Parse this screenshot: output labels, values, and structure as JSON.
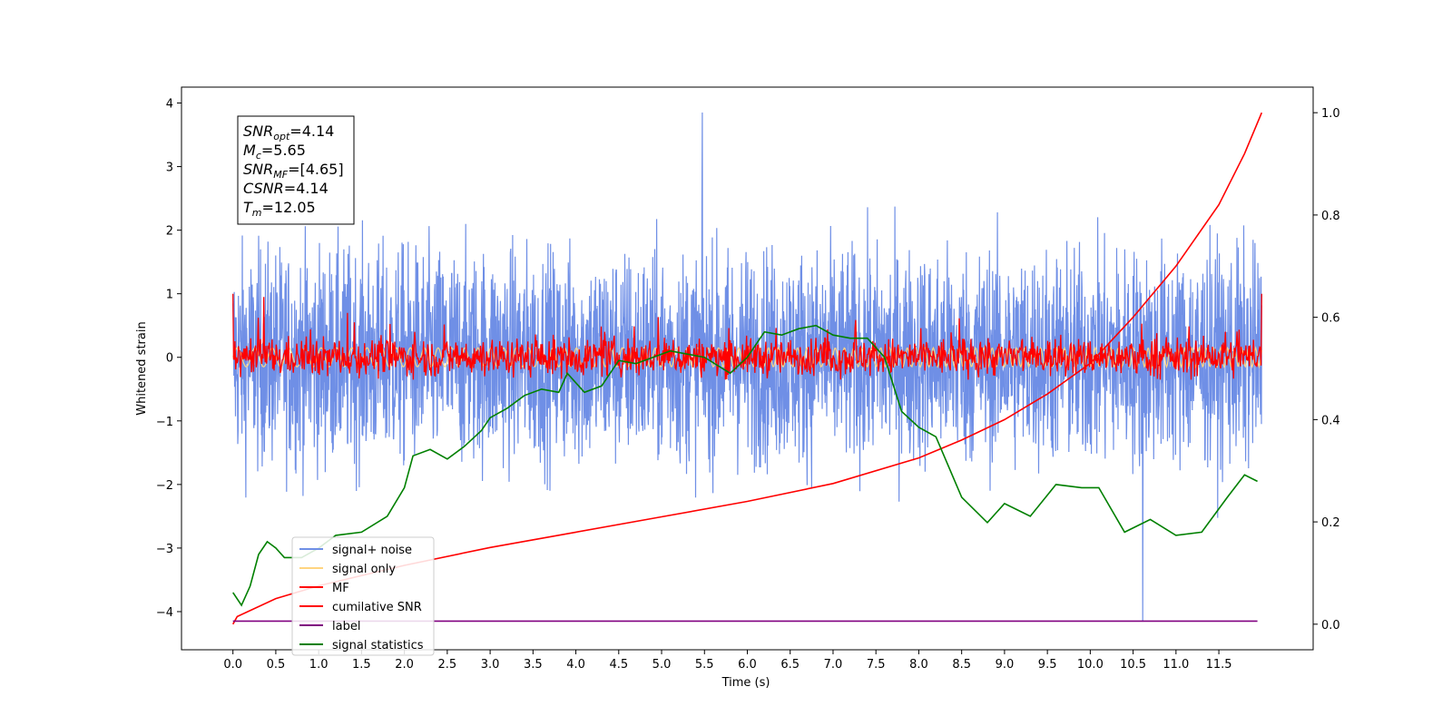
{
  "chart_data": {
    "type": "line",
    "xlabel": "Time (s)",
    "ylabel": "Whitened strain",
    "xlim": [
      -0.6,
      12.6
    ],
    "ylim": [
      -4.6,
      4.25
    ],
    "y2lim": [
      -0.05,
      1.05
    ],
    "x_ticks": [
      "0.0",
      "0.5",
      "1.0",
      "1.5",
      "2.0",
      "2.5",
      "3.0",
      "3.5",
      "4.0",
      "4.5",
      "5.0",
      "5.5",
      "6.0",
      "6.5",
      "7.0",
      "7.5",
      "8.0",
      "8.5",
      "9.0",
      "9.5",
      "10.0",
      "10.5",
      "11.0",
      "11.5"
    ],
    "y_ticks": [
      "4",
      "3",
      "2",
      "1",
      "0",
      "−1",
      "−2",
      "−3",
      "−4"
    ],
    "y2_ticks": [
      "1.0",
      "0.8",
      "0.6",
      "0.4",
      "0.2",
      "0.0"
    ],
    "annotation": {
      "lines": [
        {
          "sym": "SNR",
          "sub": "opt",
          "val": "=4.14"
        },
        {
          "sym": "M",
          "sub": "c",
          "val": "=5.65"
        },
        {
          "sym": "SNR",
          "sub": "MF",
          "val": "=[4.65]"
        },
        {
          "sym": "CSNR",
          "sub": "",
          "val": "=4.14"
        },
        {
          "sym": "T",
          "sub": "m",
          "val": "=12.05"
        }
      ]
    },
    "legend": {
      "position": "lower-left",
      "entries": [
        {
          "label": "signal+ noise",
          "color": "#6f8fe6"
        },
        {
          "label": "signal only",
          "color": "#ffd580"
        },
        {
          "label": "MF",
          "color": "#ff0000"
        },
        {
          "label": "cumilative SNR",
          "color": "#ff0000"
        },
        {
          "label": "label",
          "color": "#800080"
        },
        {
          "label": "signal statistics",
          "color": "#008000"
        }
      ]
    },
    "series": [
      {
        "name": "signal+ noise",
        "axis": "left",
        "style": "dense noise",
        "amplitude": 2.1,
        "peak_max": 3.85,
        "peak_min": -4.15,
        "color": "#6f8fe6"
      },
      {
        "name": "signal only",
        "axis": "left",
        "style": "small oscillation",
        "amplitude": 0.15,
        "color": "#ffd580"
      },
      {
        "name": "MF",
        "axis": "left",
        "style": "dense noise",
        "amplitude": 0.45,
        "start_value": 1.0,
        "end_value": 1.0,
        "color": "#ff0000"
      },
      {
        "name": "cumilative SNR",
        "axis": "right",
        "x": [
          0.0,
          0.05,
          0.5,
          1.0,
          2.0,
          3.0,
          4.0,
          5.0,
          6.0,
          7.0,
          8.0,
          8.5,
          9.0,
          9.5,
          10.0,
          10.5,
          11.0,
          11.5,
          11.8,
          12.0
        ],
        "y": [
          0.0,
          0.015,
          0.05,
          0.075,
          0.115,
          0.15,
          0.18,
          0.21,
          0.24,
          0.275,
          0.325,
          0.36,
          0.4,
          0.45,
          0.51,
          0.6,
          0.7,
          0.82,
          0.92,
          1.0
        ],
        "color": "#ff0000"
      },
      {
        "name": "label",
        "axis": "left",
        "x": [
          0.0,
          11.95
        ],
        "y": [
          -4.15,
          -4.15
        ],
        "color": "#800080"
      },
      {
        "name": "signal statistics",
        "axis": "left",
        "x": [
          0.0,
          0.1,
          0.2,
          0.3,
          0.4,
          0.5,
          0.6,
          0.8,
          1.0,
          1.2,
          1.5,
          1.8,
          2.0,
          2.1,
          2.3,
          2.5,
          2.7,
          2.9,
          3.0,
          3.2,
          3.4,
          3.6,
          3.8,
          3.9,
          4.1,
          4.3,
          4.5,
          4.7,
          4.9,
          5.1,
          5.3,
          5.5,
          5.8,
          6.0,
          6.2,
          6.4,
          6.6,
          6.8,
          7.0,
          7.2,
          7.4,
          7.6,
          7.8,
          8.0,
          8.2,
          8.5,
          8.8,
          9.0,
          9.3,
          9.6,
          9.9,
          10.1,
          10.4,
          10.7,
          11.0,
          11.3,
          11.6,
          11.8,
          11.95
        ],
        "y": [
          -3.7,
          -3.9,
          -3.6,
          -3.1,
          -2.9,
          -3.0,
          -3.15,
          -3.15,
          -3.0,
          -2.8,
          -2.75,
          -2.5,
          -2.05,
          -1.55,
          -1.45,
          -1.6,
          -1.4,
          -1.15,
          -0.95,
          -0.8,
          -0.6,
          -0.5,
          -0.55,
          -0.25,
          -0.55,
          -0.45,
          -0.05,
          -0.1,
          0.0,
          0.1,
          0.05,
          0.0,
          -0.25,
          0.0,
          0.4,
          0.35,
          0.45,
          0.5,
          0.35,
          0.3,
          0.3,
          0.0,
          -0.85,
          -1.1,
          -1.25,
          -2.2,
          -2.6,
          -2.3,
          -2.5,
          -2.0,
          -2.05,
          -2.05,
          -2.75,
          -2.55,
          -2.8,
          -2.75,
          -2.2,
          -1.85,
          -1.95
        ],
        "color": "#008000"
      }
    ]
  }
}
